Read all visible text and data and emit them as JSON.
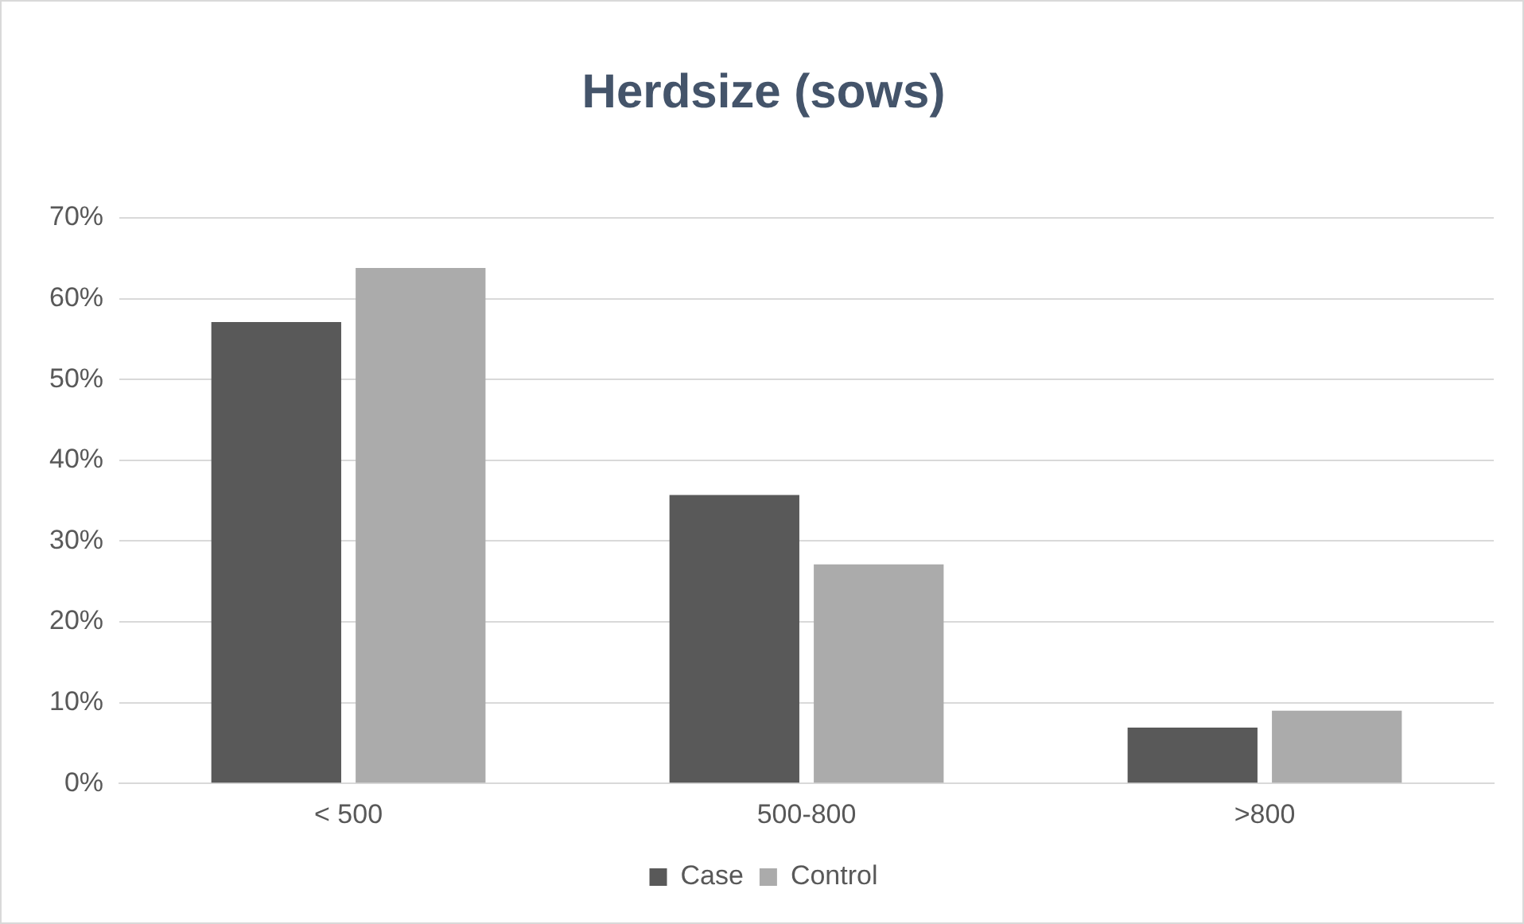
{
  "chart_data": {
    "type": "bar",
    "title": "Herdsize (sows)",
    "categories": [
      "< 500",
      "500-800",
      ">800"
    ],
    "series": [
      {
        "name": "Case",
        "color": "#595959",
        "values": [
          57.1,
          35.7,
          6.9
        ]
      },
      {
        "name": "Control",
        "color": "#ababab",
        "values": [
          63.8,
          27.1,
          9.0
        ]
      }
    ],
    "ylim": [
      0,
      70
    ],
    "yticks": [
      {
        "value": 0,
        "label": "0%"
      },
      {
        "value": 10,
        "label": "10%"
      },
      {
        "value": 20,
        "label": "20%"
      },
      {
        "value": 30,
        "label": "30%"
      },
      {
        "value": 40,
        "label": "40%"
      },
      {
        "value": 50,
        "label": "50%"
      },
      {
        "value": 60,
        "label": "60%"
      },
      {
        "value": 70,
        "label": "70%"
      }
    ],
    "grid": "y",
    "legend": "bottom"
  }
}
